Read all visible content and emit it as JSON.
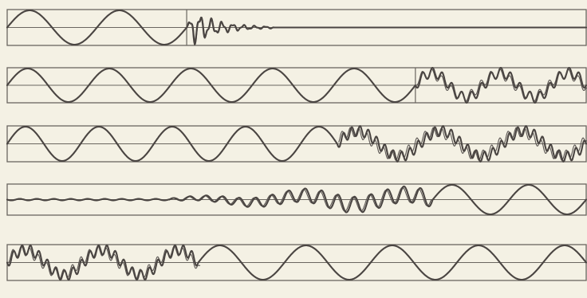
{
  "figure": {
    "background": "#f4f1e4",
    "line_color": "#6a6660",
    "trace_color": "#4a4542",
    "panels": [
      {
        "id": "row-1",
        "segments": [
          {
            "kind": "sine",
            "t0": 0.0,
            "t1": 0.31,
            "cycles": 2.0
          },
          {
            "kind": "burst-decay",
            "t0": 0.31,
            "t1": 0.46,
            "cycles": 8.0
          },
          {
            "kind": "flat",
            "t0": 0.46,
            "t1": 1.0
          }
        ],
        "marker": 0.31
      },
      {
        "id": "row-2",
        "segments": [
          {
            "kind": "sine",
            "t0": 0.0,
            "t1": 0.705,
            "cycles": 5.0
          },
          {
            "kind": "sine-with-ripple",
            "t0": 0.705,
            "t1": 1.0,
            "cycles": 2.5,
            "ripple": 7.0
          }
        ],
        "marker": 0.705
      },
      {
        "id": "row-3",
        "segments": [
          {
            "kind": "sine",
            "t0": 0.0,
            "t1": 0.57,
            "cycles": 4.5
          },
          {
            "kind": "sine-with-ripple",
            "t0": 0.57,
            "t1": 1.0,
            "cycles": 3.0,
            "ripple": 10.0
          }
        ],
        "marker": null
      },
      {
        "id": "row-4",
        "segments": [
          {
            "kind": "flat-noise",
            "t0": 0.0,
            "t1": 0.28
          },
          {
            "kind": "growing-burst",
            "t0": 0.28,
            "t1": 0.735,
            "cycles": 16.0
          },
          {
            "kind": "sine",
            "t0": 0.735,
            "t1": 1.0,
            "cycles": 2.0
          }
        ],
        "marker": null
      },
      {
        "id": "row-5",
        "segments": [
          {
            "kind": "sine-with-ripple",
            "t0": 0.0,
            "t1": 0.33,
            "cycles": 2.5,
            "ripple": 9.0
          },
          {
            "kind": "sine",
            "t0": 0.33,
            "t1": 1.0,
            "cycles": 4.5
          }
        ],
        "marker": null
      }
    ]
  }
}
